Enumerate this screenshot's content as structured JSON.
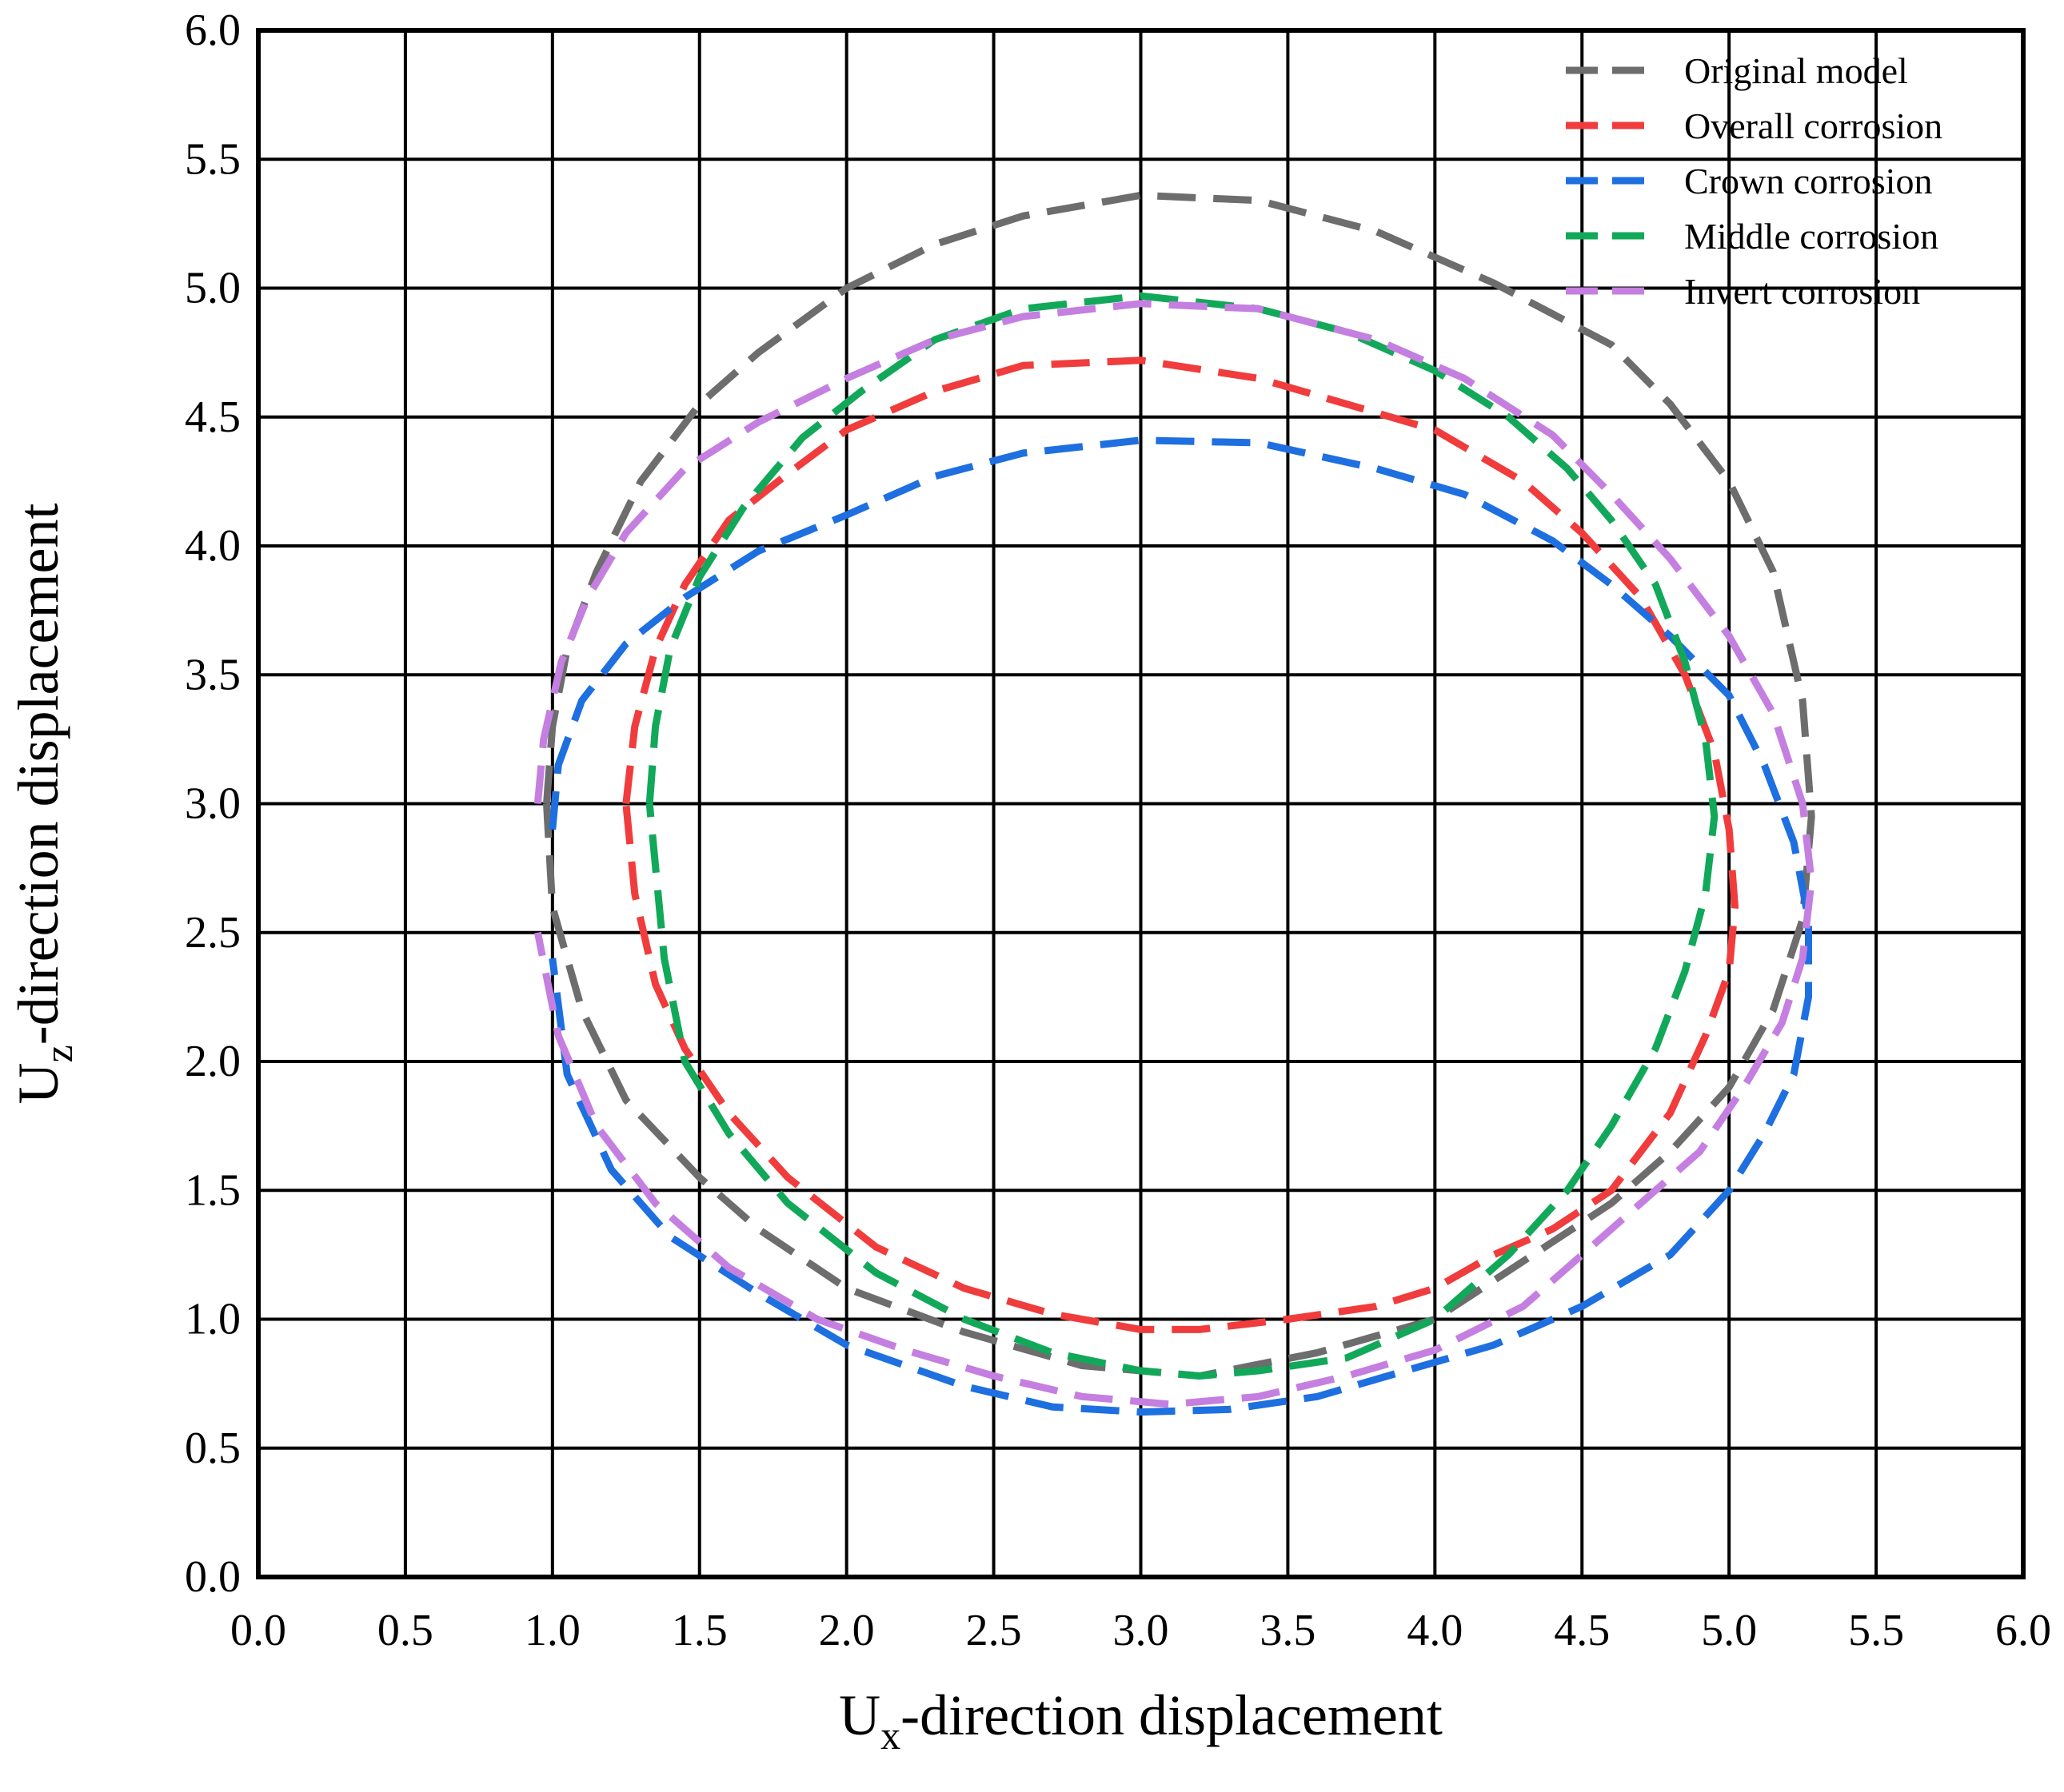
{
  "chart_data": {
    "type": "line",
    "title": "",
    "xlabel_main": "U",
    "xlabel_sub": "x",
    "xlabel_rest": "-direction displacement",
    "ylabel_main": "U",
    "ylabel_sub": "z",
    "ylabel_rest": "-direction displacement",
    "xlim": [
      0,
      6
    ],
    "ylim": [
      0,
      6
    ],
    "xticks": [
      "0.0",
      "0.5",
      "1.0",
      "1.5",
      "2.0",
      "2.5",
      "3.0",
      "3.5",
      "4.0",
      "4.5",
      "5.0",
      "5.5",
      "6.0"
    ],
    "yticks": [
      "0.0",
      "0.5",
      "1.0",
      "1.5",
      "2.0",
      "2.5",
      "3.0",
      "3.5",
      "4.0",
      "4.5",
      "5.0",
      "5.5",
      "6.0"
    ],
    "grid": true,
    "legend_position": "top-right",
    "series": [
      {
        "name": "Original model",
        "color": "#6d6d6d",
        "x": [
          0.98,
          1.0,
          1.05,
          1.15,
          1.3,
          1.5,
          1.7,
          2.0,
          2.3,
          2.6,
          3.0,
          3.4,
          3.8,
          4.2,
          4.6,
          4.8,
          5.0,
          5.15,
          5.25,
          5.28,
          5.25,
          5.15,
          5.0,
          4.8,
          4.6,
          4.4,
          4.2,
          4.0,
          3.6,
          3.2,
          2.8,
          2.4,
          2.0,
          1.7,
          1.5,
          1.25,
          1.1,
          1.0,
          0.98
        ],
        "y": [
          3.0,
          3.3,
          3.6,
          3.9,
          4.25,
          4.55,
          4.75,
          5.0,
          5.17,
          5.28,
          5.36,
          5.34,
          5.22,
          5.02,
          4.78,
          4.55,
          4.25,
          3.9,
          3.4,
          2.95,
          2.55,
          2.2,
          1.9,
          1.65,
          1.45,
          1.3,
          1.15,
          1.0,
          0.87,
          0.78,
          0.82,
          0.95,
          1.12,
          1.35,
          1.55,
          1.85,
          2.2,
          2.6,
          3.0
        ]
      },
      {
        "name": "Overall corrosion",
        "color": "#f03c3c",
        "x": [
          1.25,
          1.28,
          1.35,
          1.45,
          1.6,
          1.8,
          2.0,
          2.3,
          2.6,
          3.0,
          3.4,
          3.7,
          4.0,
          4.3,
          4.5,
          4.7,
          4.85,
          4.95,
          5.0,
          5.02,
          5.0,
          4.92,
          4.8,
          4.6,
          4.4,
          4.2,
          4.0,
          3.8,
          3.5,
          3.2,
          3.0,
          2.7,
          2.4,
          2.1,
          1.8,
          1.6,
          1.45,
          1.35,
          1.28,
          1.25
        ],
        "y": [
          3.0,
          3.3,
          3.6,
          3.85,
          4.1,
          4.28,
          4.45,
          4.6,
          4.7,
          4.72,
          4.65,
          4.55,
          4.45,
          4.25,
          4.05,
          3.8,
          3.5,
          3.2,
          2.9,
          2.6,
          2.35,
          2.1,
          1.8,
          1.5,
          1.35,
          1.25,
          1.12,
          1.05,
          1.0,
          0.96,
          0.96,
          1.02,
          1.12,
          1.28,
          1.55,
          1.8,
          2.05,
          2.3,
          2.65,
          3.0
        ]
      },
      {
        "name": "Crown corrosion",
        "color": "#1e6fe0",
        "x": [
          1.0,
          1.02,
          1.1,
          1.25,
          1.45,
          1.7,
          2.0,
          2.3,
          2.6,
          3.0,
          3.4,
          3.8,
          4.1,
          4.4,
          4.6,
          4.8,
          5.0,
          5.12,
          5.22,
          5.27,
          5.27,
          5.22,
          5.12,
          5.0,
          4.8,
          4.5,
          4.2,
          3.9,
          3.6,
          3.3,
          3.0,
          2.7,
          2.4,
          2.0,
          1.7,
          1.4,
          1.2,
          1.05,
          1.0
        ],
        "y": [
          2.9,
          3.15,
          3.4,
          3.62,
          3.8,
          3.98,
          4.12,
          4.27,
          4.36,
          4.41,
          4.4,
          4.3,
          4.2,
          4.02,
          3.85,
          3.65,
          3.42,
          3.15,
          2.85,
          2.55,
          2.25,
          1.95,
          1.72,
          1.5,
          1.25,
          1.05,
          0.9,
          0.8,
          0.7,
          0.65,
          0.64,
          0.66,
          0.74,
          0.9,
          1.1,
          1.32,
          1.58,
          1.95,
          2.4
        ]
      },
      {
        "name": "Middle corrosion",
        "color": "#12a85a",
        "x": [
          1.33,
          1.35,
          1.4,
          1.5,
          1.65,
          1.85,
          2.05,
          2.3,
          2.6,
          3.0,
          3.4,
          3.7,
          4.0,
          4.25,
          4.45,
          4.6,
          4.75,
          4.85,
          4.92,
          4.95,
          4.92,
          4.85,
          4.75,
          4.6,
          4.45,
          4.25,
          4.0,
          3.7,
          3.4,
          3.2,
          3.0,
          2.7,
          2.4,
          2.1,
          1.8,
          1.6,
          1.45,
          1.38,
          1.33
        ],
        "y": [
          3.0,
          3.3,
          3.6,
          3.88,
          4.15,
          4.42,
          4.6,
          4.8,
          4.92,
          4.97,
          4.92,
          4.83,
          4.68,
          4.5,
          4.3,
          4.1,
          3.85,
          3.55,
          3.25,
          2.95,
          2.65,
          2.35,
          2.05,
          1.75,
          1.5,
          1.25,
          1.0,
          0.85,
          0.8,
          0.78,
          0.8,
          0.87,
          1.0,
          1.18,
          1.45,
          1.72,
          2.0,
          2.4,
          3.0
        ]
      },
      {
        "name": "Invert corrosion",
        "color": "#c47fe0",
        "x": [
          0.95,
          0.97,
          1.03,
          1.12,
          1.25,
          1.45,
          1.7,
          2.0,
          2.3,
          2.6,
          3.0,
          3.4,
          3.8,
          4.1,
          4.4,
          4.6,
          4.8,
          5.0,
          5.15,
          5.25,
          5.28,
          5.25,
          5.18,
          5.05,
          4.9,
          4.7,
          4.5,
          4.3,
          4.0,
          3.7,
          3.4,
          3.1,
          2.8,
          2.5,
          2.2,
          1.9,
          1.6,
          1.35,
          1.15,
          1.02,
          0.95
        ],
        "y": [
          3.0,
          3.25,
          3.55,
          3.8,
          4.05,
          4.3,
          4.48,
          4.65,
          4.8,
          4.89,
          4.94,
          4.92,
          4.8,
          4.65,
          4.43,
          4.2,
          3.95,
          3.65,
          3.35,
          3.0,
          2.7,
          2.4,
          2.15,
          1.9,
          1.65,
          1.45,
          1.25,
          1.05,
          0.88,
          0.78,
          0.7,
          0.67,
          0.7,
          0.78,
          0.88,
          1.0,
          1.2,
          1.45,
          1.75,
          2.1,
          2.5
        ]
      }
    ]
  }
}
